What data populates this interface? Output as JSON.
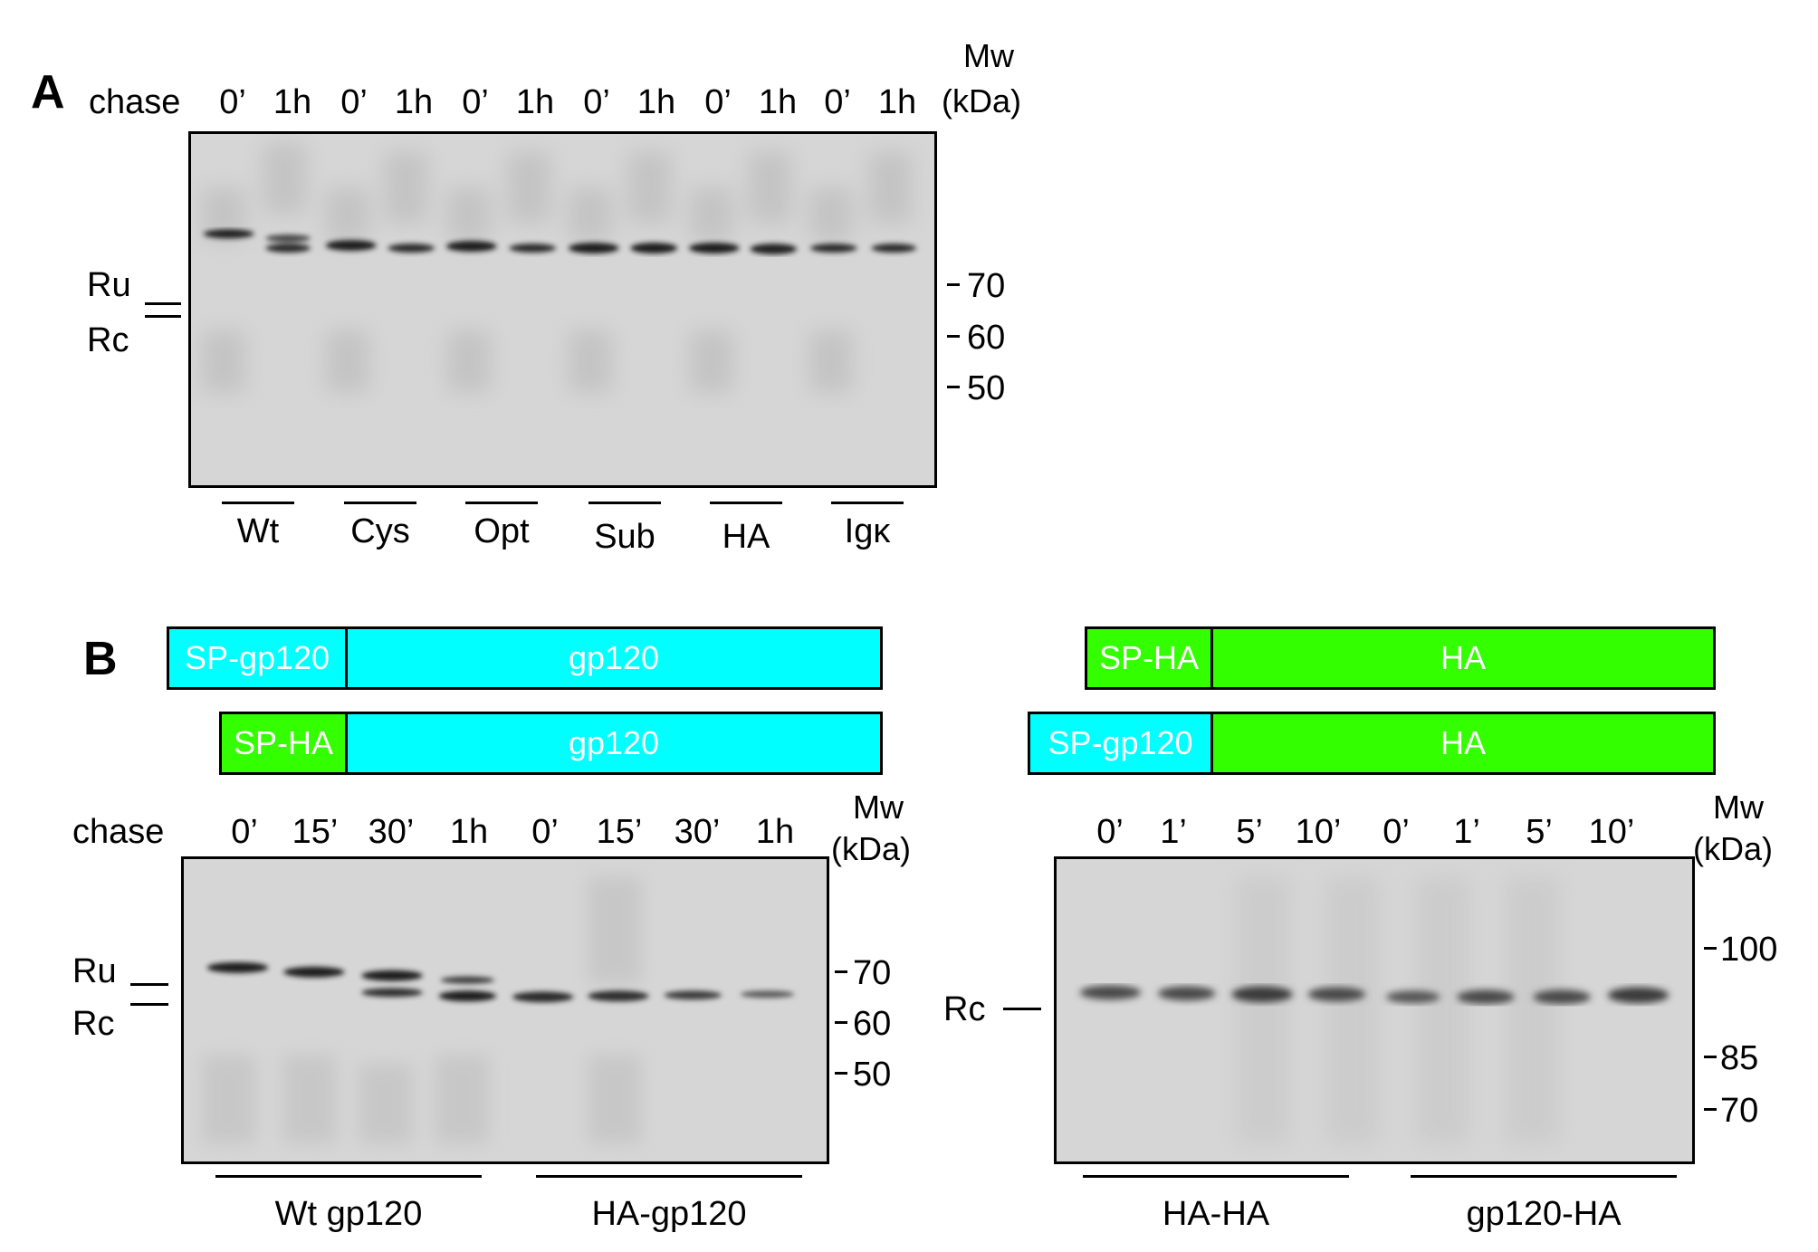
{
  "panelA": {
    "letter": "A",
    "chase_label": "chase",
    "lanes": [
      "0’",
      "1h",
      "0’",
      "1h",
      "0’",
      "1h",
      "0’",
      "1h",
      "0’",
      "1h",
      "0’",
      "1h"
    ],
    "mw_title_1": "Mw",
    "mw_title_2": "(kDa)",
    "markers": [
      "70",
      "60",
      "50"
    ],
    "band_labels": [
      "Ru",
      "Rc"
    ],
    "groups": [
      "Wt",
      "Cys",
      "Opt",
      "Sub",
      "HA",
      "Igκ"
    ]
  },
  "panelB": {
    "letter": "B",
    "colors": {
      "gp120": "#00ffff",
      "ha": "#33ff00"
    },
    "left": {
      "construct1": {
        "sp": "SP-gp120",
        "body": "gp120"
      },
      "construct2": {
        "sp": "SP-HA",
        "body": "gp120"
      },
      "chase_label": "chase",
      "lanes": [
        "0’",
        "15’",
        "30’",
        "1h",
        "0’",
        "15’",
        "30’",
        "1h"
      ],
      "mw_title_1": "Mw",
      "mw_title_2": "(kDa)",
      "markers": [
        "70",
        "60",
        "50"
      ],
      "band_labels": [
        "Ru",
        "Rc"
      ],
      "groups": [
        "Wt gp120",
        "HA-gp120"
      ]
    },
    "right": {
      "construct1": {
        "sp": "SP-HA",
        "body": "HA"
      },
      "construct2": {
        "sp": "SP-gp120",
        "body": "HA"
      },
      "lanes": [
        "0’",
        "1’",
        "5’",
        "10’",
        "0’",
        "1’",
        "5’",
        "10’"
      ],
      "mw_title_1": "Mw",
      "mw_title_2": "(kDa)",
      "markers": [
        "100",
        "85",
        "70"
      ],
      "band_labels": [
        "Rc"
      ],
      "groups": [
        "HA-HA",
        "gp120-HA"
      ]
    }
  }
}
